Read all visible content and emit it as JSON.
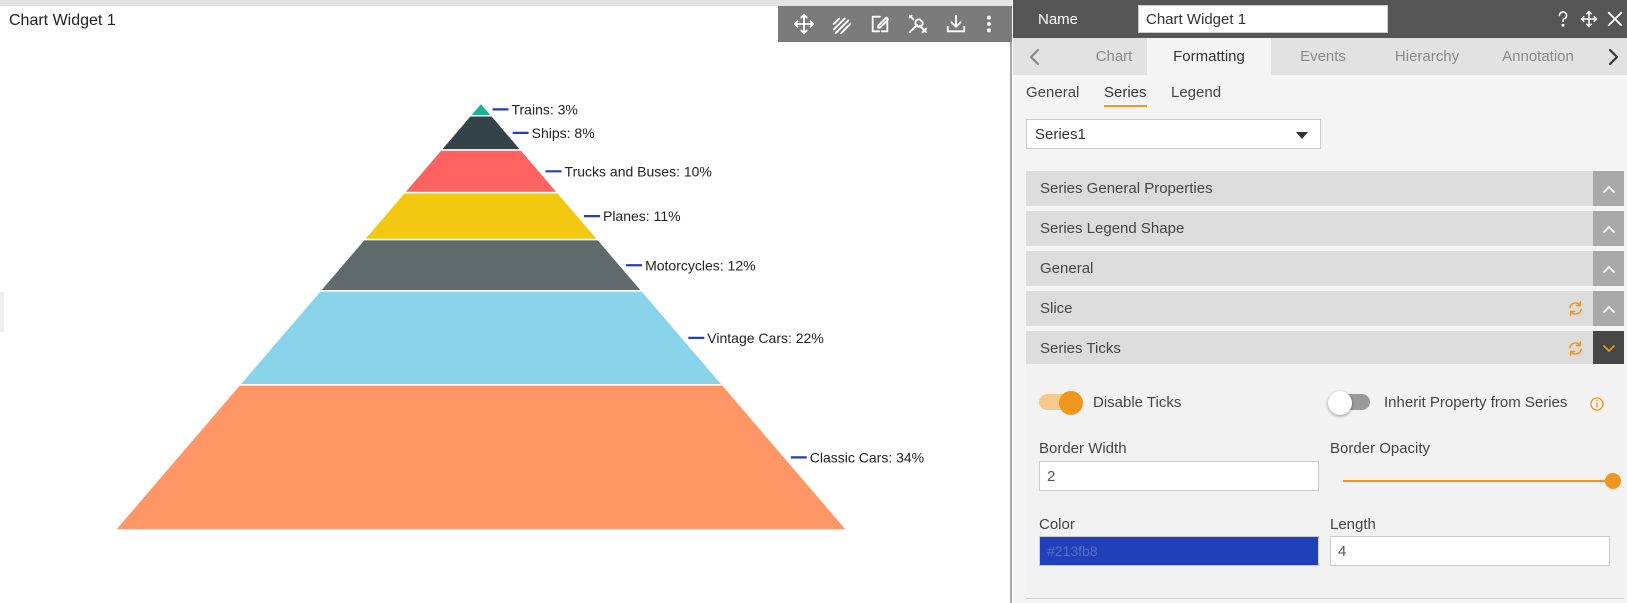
{
  "widget": {
    "title": "Chart Widget 1",
    "toolbar": [
      "move-icon",
      "stroke-icon",
      "edit-icon",
      "tools-icon",
      "download-icon",
      "more-icon"
    ]
  },
  "chart_data": {
    "type": "pyramid",
    "tick_color": "#213fb8",
    "segments": [
      {
        "name": "Trains",
        "percent": 3,
        "label": "Trains: 3%",
        "color": "#1ab394"
      },
      {
        "name": "Ships",
        "percent": 8,
        "label": "Ships: 8%",
        "color": "#34424a"
      },
      {
        "name": "Trucks and Buses",
        "percent": 10,
        "label": "Trucks and Buses: 10%",
        "color": "#ff6361"
      },
      {
        "name": "Planes",
        "percent": 11,
        "label": "Planes: 11%",
        "color": "#f2c811"
      },
      {
        "name": "Motorcycles",
        "percent": 12,
        "label": "Motorcycles: 12%",
        "color": "#5e6a6b"
      },
      {
        "name": "Vintage Cars",
        "percent": 22,
        "label": "Vintage Cars: 22%",
        "color": "#8ad4eb"
      },
      {
        "name": "Classic Cars",
        "percent": 34,
        "label": "Classic Cars: 34%",
        "color": "#fe9666"
      }
    ]
  },
  "panel": {
    "name_label": "Name",
    "name_value": "Chart Widget 1",
    "header_icons": [
      "help-icon",
      "move-icon",
      "close-icon"
    ],
    "tabs": [
      {
        "label": "Chart",
        "active": false
      },
      {
        "label": "Formatting",
        "active": true
      },
      {
        "label": "Events",
        "active": false
      },
      {
        "label": "Hierarchy",
        "active": false
      },
      {
        "label": "Annotation",
        "active": false
      }
    ],
    "subtabs": [
      {
        "label": "General",
        "active": false
      },
      {
        "label": "Series",
        "active": true
      },
      {
        "label": "Legend",
        "active": false
      }
    ],
    "series_select": "Series1",
    "sections": [
      {
        "label": "Series General Properties",
        "expanded": false
      },
      {
        "label": "Series Legend Shape",
        "expanded": false
      },
      {
        "label": "General",
        "expanded": false
      },
      {
        "label": "Slice",
        "expanded": false
      },
      {
        "label": "Series Ticks",
        "expanded": true
      }
    ],
    "ticks": {
      "disable_ticks_label": "Disable Ticks",
      "disable_ticks_on": true,
      "inherit_label": "Inherit Property from Series",
      "inherit_on": false,
      "border_width_label": "Border Width",
      "border_width_value": "2",
      "border_opacity_label": "Border Opacity",
      "border_opacity_value": 1,
      "color_label": "Color",
      "color_value": "#213fb8",
      "length_label": "Length",
      "length_value": "4"
    }
  },
  "colors": {
    "accent": "#f0961e",
    "header_bg": "#555555",
    "toolbar_bg": "#7b7b7b",
    "section_bg": "#dcdcdc",
    "section_btn": "#a9a9a9",
    "section_btn_active": "#464646"
  }
}
